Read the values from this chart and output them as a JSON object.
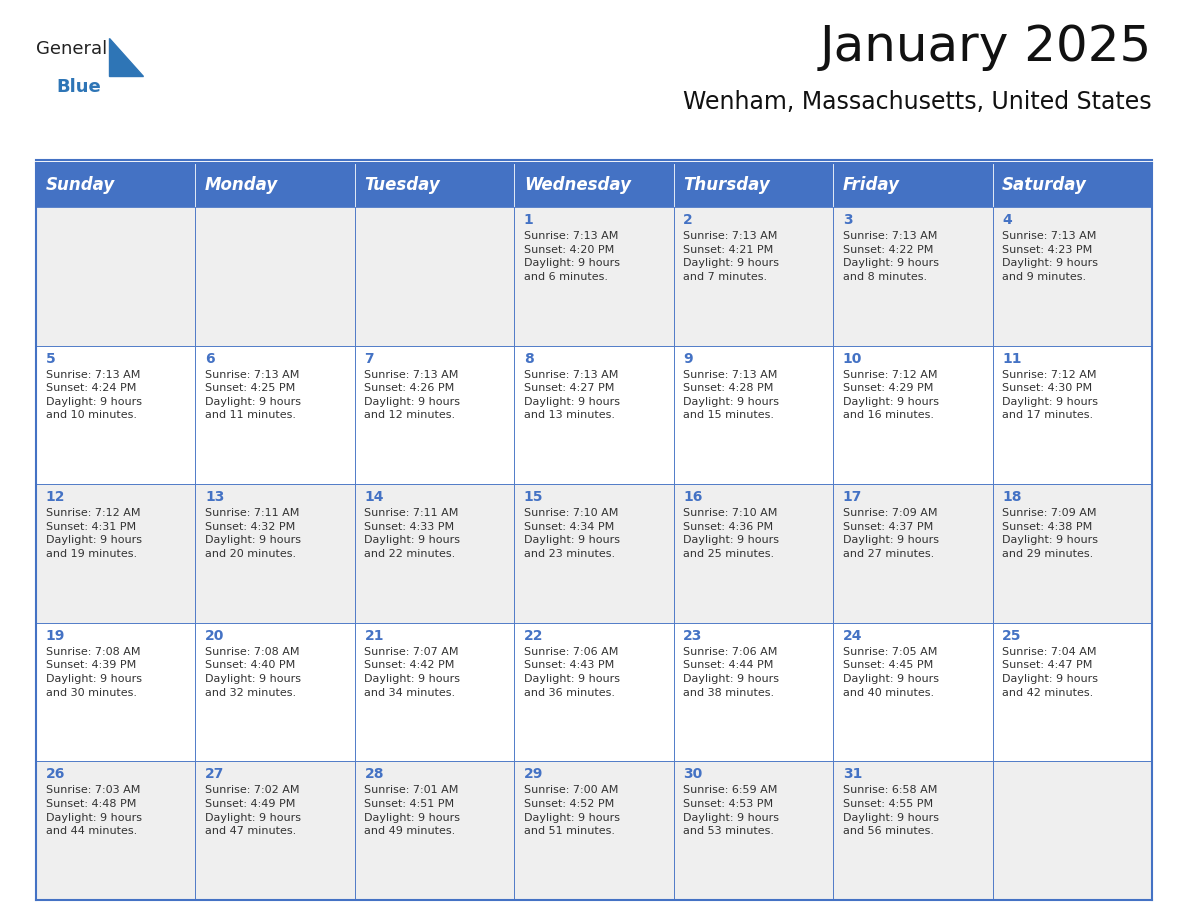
{
  "title": "January 2025",
  "subtitle": "Wenham, Massachusetts, United States",
  "header_color": "#4472C4",
  "header_text_color": "#FFFFFF",
  "cell_bg_even": "#EFEFEF",
  "cell_bg_odd": "#FFFFFF",
  "border_color": "#4472C4",
  "text_color": "#333333",
  "days_of_week": [
    "Sunday",
    "Monday",
    "Tuesday",
    "Wednesday",
    "Thursday",
    "Friday",
    "Saturday"
  ],
  "title_fontsize": 36,
  "subtitle_fontsize": 17,
  "header_fontsize": 12,
  "cell_fontsize": 8,
  "day_num_fontsize": 10,
  "weeks": [
    [
      {
        "day": "",
        "info": ""
      },
      {
        "day": "",
        "info": ""
      },
      {
        "day": "",
        "info": ""
      },
      {
        "day": "1",
        "info": "Sunrise: 7:13 AM\nSunset: 4:20 PM\nDaylight: 9 hours\nand 6 minutes."
      },
      {
        "day": "2",
        "info": "Sunrise: 7:13 AM\nSunset: 4:21 PM\nDaylight: 9 hours\nand 7 minutes."
      },
      {
        "day": "3",
        "info": "Sunrise: 7:13 AM\nSunset: 4:22 PM\nDaylight: 9 hours\nand 8 minutes."
      },
      {
        "day": "4",
        "info": "Sunrise: 7:13 AM\nSunset: 4:23 PM\nDaylight: 9 hours\nand 9 minutes."
      }
    ],
    [
      {
        "day": "5",
        "info": "Sunrise: 7:13 AM\nSunset: 4:24 PM\nDaylight: 9 hours\nand 10 minutes."
      },
      {
        "day": "6",
        "info": "Sunrise: 7:13 AM\nSunset: 4:25 PM\nDaylight: 9 hours\nand 11 minutes."
      },
      {
        "day": "7",
        "info": "Sunrise: 7:13 AM\nSunset: 4:26 PM\nDaylight: 9 hours\nand 12 minutes."
      },
      {
        "day": "8",
        "info": "Sunrise: 7:13 AM\nSunset: 4:27 PM\nDaylight: 9 hours\nand 13 minutes."
      },
      {
        "day": "9",
        "info": "Sunrise: 7:13 AM\nSunset: 4:28 PM\nDaylight: 9 hours\nand 15 minutes."
      },
      {
        "day": "10",
        "info": "Sunrise: 7:12 AM\nSunset: 4:29 PM\nDaylight: 9 hours\nand 16 minutes."
      },
      {
        "day": "11",
        "info": "Sunrise: 7:12 AM\nSunset: 4:30 PM\nDaylight: 9 hours\nand 17 minutes."
      }
    ],
    [
      {
        "day": "12",
        "info": "Sunrise: 7:12 AM\nSunset: 4:31 PM\nDaylight: 9 hours\nand 19 minutes."
      },
      {
        "day": "13",
        "info": "Sunrise: 7:11 AM\nSunset: 4:32 PM\nDaylight: 9 hours\nand 20 minutes."
      },
      {
        "day": "14",
        "info": "Sunrise: 7:11 AM\nSunset: 4:33 PM\nDaylight: 9 hours\nand 22 minutes."
      },
      {
        "day": "15",
        "info": "Sunrise: 7:10 AM\nSunset: 4:34 PM\nDaylight: 9 hours\nand 23 minutes."
      },
      {
        "day": "16",
        "info": "Sunrise: 7:10 AM\nSunset: 4:36 PM\nDaylight: 9 hours\nand 25 minutes."
      },
      {
        "day": "17",
        "info": "Sunrise: 7:09 AM\nSunset: 4:37 PM\nDaylight: 9 hours\nand 27 minutes."
      },
      {
        "day": "18",
        "info": "Sunrise: 7:09 AM\nSunset: 4:38 PM\nDaylight: 9 hours\nand 29 minutes."
      }
    ],
    [
      {
        "day": "19",
        "info": "Sunrise: 7:08 AM\nSunset: 4:39 PM\nDaylight: 9 hours\nand 30 minutes."
      },
      {
        "day": "20",
        "info": "Sunrise: 7:08 AM\nSunset: 4:40 PM\nDaylight: 9 hours\nand 32 minutes."
      },
      {
        "day": "21",
        "info": "Sunrise: 7:07 AM\nSunset: 4:42 PM\nDaylight: 9 hours\nand 34 minutes."
      },
      {
        "day": "22",
        "info": "Sunrise: 7:06 AM\nSunset: 4:43 PM\nDaylight: 9 hours\nand 36 minutes."
      },
      {
        "day": "23",
        "info": "Sunrise: 7:06 AM\nSunset: 4:44 PM\nDaylight: 9 hours\nand 38 minutes."
      },
      {
        "day": "24",
        "info": "Sunrise: 7:05 AM\nSunset: 4:45 PM\nDaylight: 9 hours\nand 40 minutes."
      },
      {
        "day": "25",
        "info": "Sunrise: 7:04 AM\nSunset: 4:47 PM\nDaylight: 9 hours\nand 42 minutes."
      }
    ],
    [
      {
        "day": "26",
        "info": "Sunrise: 7:03 AM\nSunset: 4:48 PM\nDaylight: 9 hours\nand 44 minutes."
      },
      {
        "day": "27",
        "info": "Sunrise: 7:02 AM\nSunset: 4:49 PM\nDaylight: 9 hours\nand 47 minutes."
      },
      {
        "day": "28",
        "info": "Sunrise: 7:01 AM\nSunset: 4:51 PM\nDaylight: 9 hours\nand 49 minutes."
      },
      {
        "day": "29",
        "info": "Sunrise: 7:00 AM\nSunset: 4:52 PM\nDaylight: 9 hours\nand 51 minutes."
      },
      {
        "day": "30",
        "info": "Sunrise: 6:59 AM\nSunset: 4:53 PM\nDaylight: 9 hours\nand 53 minutes."
      },
      {
        "day": "31",
        "info": "Sunrise: 6:58 AM\nSunset: 4:55 PM\nDaylight: 9 hours\nand 56 minutes."
      },
      {
        "day": "",
        "info": ""
      }
    ]
  ],
  "logo_general_color": "#222222",
  "logo_blue_color": "#2E75B6",
  "logo_triangle_color": "#2E75B6",
  "fig_width": 11.88,
  "fig_height": 9.18,
  "dpi": 100
}
